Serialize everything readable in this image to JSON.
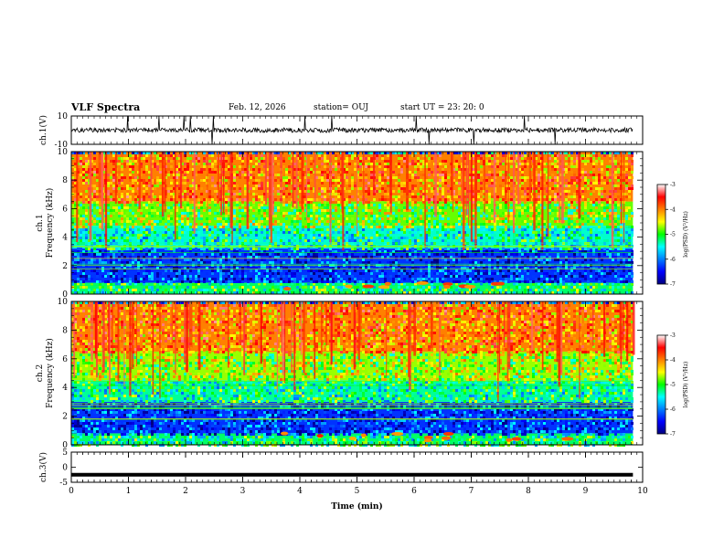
{
  "header": {
    "title": "VLF Spectra",
    "date": "Feb. 12, 2026",
    "station": "station= OUJ",
    "start": "start  UT =   23: 20: 0"
  },
  "chart_data": [
    {
      "type": "line",
      "name": "ch1-waveform",
      "ylabel": "ch.1(V)",
      "ylim": [
        -10,
        10
      ],
      "yticks": [
        "10",
        "-10"
      ],
      "baseline": 0,
      "xlim": [
        0,
        9.83
      ],
      "color": "#000000"
    },
    {
      "type": "heatmap",
      "name": "ch1-spectrogram",
      "ylabel_top": "ch.1",
      "ylabel": "Frequency (kHz)",
      "ylim": [
        0,
        10
      ],
      "yticks": [
        "0",
        "2",
        "4",
        "6",
        "8",
        "10"
      ],
      "colorbar": {
        "label": "log(PSD) (V²/Hz)",
        "range": [
          -7,
          -3
        ],
        "ticks": [
          "-3",
          "-4",
          "-5",
          "-6",
          "-7"
        ]
      },
      "bands": [
        {
          "from_khz": 0,
          "to_khz": 0.8,
          "level": -5.2
        },
        {
          "from_khz": 0.8,
          "to_khz": 3.2,
          "level": -6.3
        },
        {
          "from_khz": 3.2,
          "to_khz": 4.8,
          "level": -5.4
        },
        {
          "from_khz": 4.8,
          "to_khz": 6.5,
          "level": -4.8
        },
        {
          "from_khz": 6.5,
          "to_khz": 10,
          "level": -4.0
        }
      ]
    },
    {
      "type": "heatmap",
      "name": "ch2-spectrogram",
      "ylabel_top": "ch.2",
      "ylabel": "Frequency (kHz)",
      "ylim": [
        0,
        10
      ],
      "yticks": [
        "0",
        "2",
        "4",
        "6",
        "8",
        "10"
      ],
      "colorbar": {
        "label": "log(PSD) (V²/Hz)",
        "range": [
          -7,
          -3
        ],
        "ticks": [
          "-3",
          "-4",
          "-5",
          "-6",
          "-7"
        ]
      },
      "bands": [
        {
          "from_khz": 0,
          "to_khz": 0.8,
          "level": -5.2
        },
        {
          "from_khz": 0.8,
          "to_khz": 3.0,
          "level": -6.3
        },
        {
          "from_khz": 3.0,
          "to_khz": 4.5,
          "level": -5.3
        },
        {
          "from_khz": 4.5,
          "to_khz": 6.5,
          "level": -4.7
        },
        {
          "from_khz": 6.5,
          "to_khz": 10,
          "level": -4.0
        }
      ]
    },
    {
      "type": "line",
      "name": "ch3-waveform",
      "ylabel": "ch.3(V)",
      "ylim": [
        -5,
        5
      ],
      "yticks": [
        "5",
        "0",
        "-5"
      ],
      "baseline": -2.5,
      "xlim": [
        0,
        9.83
      ],
      "color": "#000000"
    }
  ],
  "time_axis": {
    "label": "Time (min)",
    "range": [
      0,
      10
    ],
    "ticks": [
      "0",
      "1",
      "2",
      "3",
      "4",
      "5",
      "6",
      "7",
      "8",
      "9",
      "10"
    ]
  }
}
